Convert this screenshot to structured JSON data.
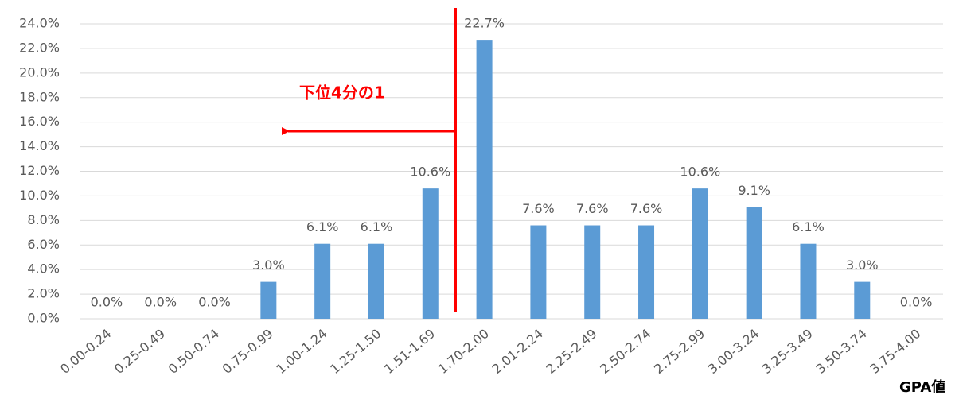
{
  "chart_data": {
    "type": "bar",
    "categories": [
      "0.00-0.24",
      "0.25-0.49",
      "0.50-0.74",
      "0.75-0.99",
      "1.00-1.24",
      "1.25-1.50",
      "1.51-1.69",
      "1.70-2.00",
      "2.01-2.24",
      "2.25-2.49",
      "2.50-2.74",
      "2.75-2.99",
      "3.00-3.24",
      "3.25-3.49",
      "3.50-3.74",
      "3.75-4.00"
    ],
    "values": [
      0.0,
      0.0,
      0.0,
      3.0,
      6.1,
      6.1,
      10.6,
      22.7,
      7.6,
      7.6,
      7.6,
      10.6,
      9.1,
      6.1,
      3.0,
      0.0
    ],
    "value_labels": [
      "0.0%",
      "0.0%",
      "0.0%",
      "3.0%",
      "6.1%",
      "6.1%",
      "10.6%",
      "22.7%",
      "7.6%",
      "7.6%",
      "7.6%",
      "10.6%",
      "9.1%",
      "6.1%",
      "3.0%",
      "0.0%"
    ],
    "color": "#5b9bd5",
    "ylim": [
      0,
      24
    ],
    "yticks": [
      {
        "value": 0,
        "label": "0.0%"
      },
      {
        "value": 2,
        "label": "2.0%"
      },
      {
        "value": 4,
        "label": "4.0%"
      },
      {
        "value": 6,
        "label": "6.0%"
      },
      {
        "value": 8,
        "label": "8.0%"
      },
      {
        "value": 10,
        "label": "10.0%"
      },
      {
        "value": 12,
        "label": "12.0%"
      },
      {
        "value": 14,
        "label": "14.0%"
      },
      {
        "value": 16,
        "label": "16.0%"
      },
      {
        "value": 18,
        "label": "18.0%"
      },
      {
        "value": 20,
        "label": "20.0%"
      },
      {
        "value": 22,
        "label": "22.0%"
      },
      {
        "value": 24,
        "label": "24.0%"
      }
    ],
    "grid": true,
    "annotation": "下位4分の1",
    "x_label": "GPA値"
  }
}
